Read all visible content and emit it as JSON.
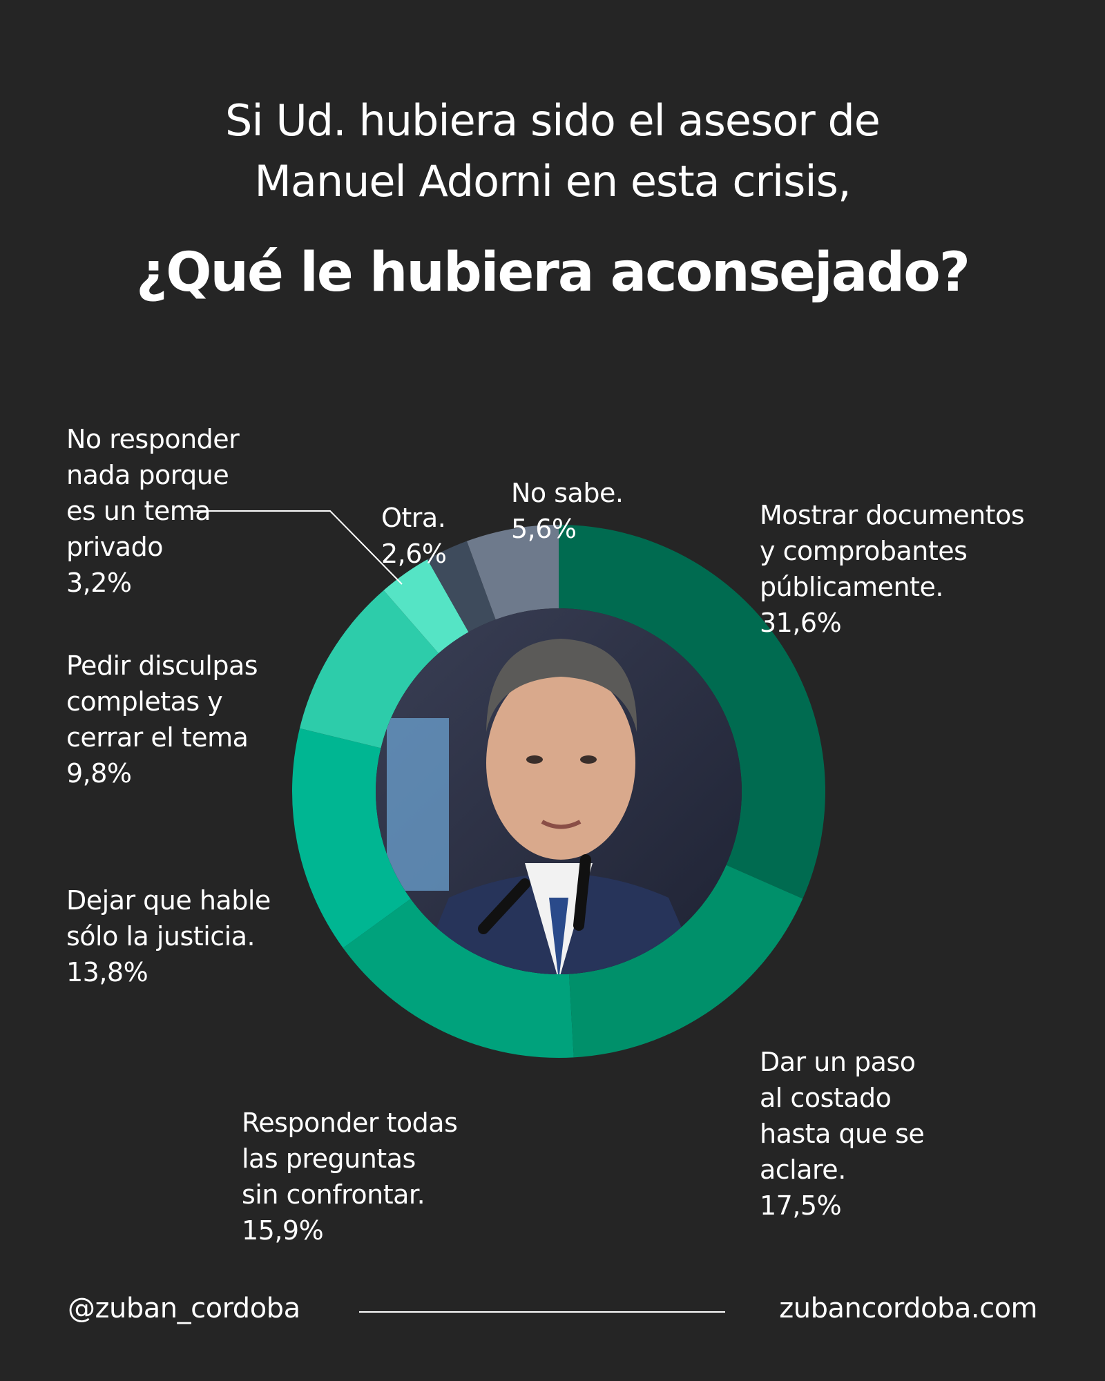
{
  "header": {
    "line1": "Si Ud. hubiera sido el asesor de",
    "line2": "Manuel Adorni en esta crisis,",
    "question": "¿Qué le hubiera aconsejado?"
  },
  "chart_data": {
    "type": "pie",
    "donut": true,
    "title": "¿Qué le hubiera aconsejado?",
    "slices": [
      {
        "label": "Mostrar documentos\ny comprobantes\npúblicamente.",
        "value": 31.6,
        "value_label": "31,6%",
        "color": "#006B50"
      },
      {
        "label": "Dar un paso\nal costado\nhasta que se\naclare.",
        "value": 17.5,
        "value_label": "17,5%",
        "color": "#00906A"
      },
      {
        "label": "Responder todas\nlas preguntas\nsin confrontar.",
        "value": 15.9,
        "value_label": "15,9%",
        "color": "#00A27C"
      },
      {
        "label": "Dejar que hable\nsólo la justicia.",
        "value": 13.8,
        "value_label": "13,8%",
        "color": "#00B692"
      },
      {
        "label": "Pedir disculpas\ncompletas y\ncerrar el tema",
        "value": 9.8,
        "value_label": "9,8%",
        "color": "#2DCCAA"
      },
      {
        "label": "No responder\nnada porque\nes un tema\nprivado",
        "value": 3.2,
        "value_label": "3,2%",
        "color": "#55E4C5"
      },
      {
        "label": "Otra.",
        "value": 2.6,
        "value_label": "2,6%",
        "color": "#3E4B5C"
      },
      {
        "label": "No sabe.",
        "value": 5.6,
        "value_label": "5,6%",
        "color": "#6E7A8C"
      }
    ]
  },
  "footer": {
    "handle": "@zuban_cordoba",
    "site": "zubancordoba.com"
  }
}
